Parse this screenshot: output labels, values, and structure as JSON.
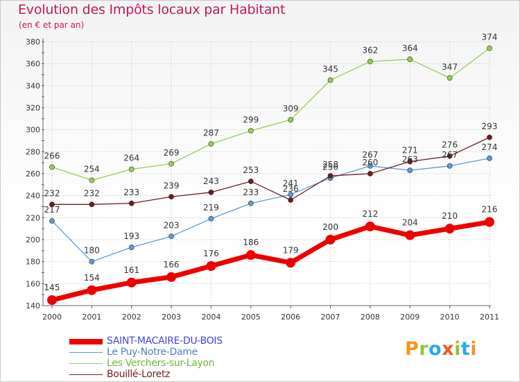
{
  "header": {
    "title": "Evolution des Impôts locaux par Habitant",
    "subtitle": "(en € et par an)"
  },
  "logo": {
    "text": "Proxiti",
    "letters": [
      {
        "ch": "P",
        "color": "#f7941d"
      },
      {
        "ch": "r",
        "color": "#8dc63f"
      },
      {
        "ch": "o",
        "color": "#29abe2"
      },
      {
        "ch": "x",
        "color": "#f15a24"
      },
      {
        "ch": "i",
        "color": "#8dc63f"
      },
      {
        "ch": "t",
        "color": "#29abe2"
      },
      {
        "ch": "i",
        "color": "#f7941d"
      }
    ]
  },
  "chart_data": {
    "type": "line",
    "title": "Evolution des Impôts locaux par Habitant",
    "subtitle": "(en € et par an)",
    "x": [
      "2000",
      "2001",
      "2002",
      "2003",
      "2004",
      "2005",
      "2006",
      "2007",
      "2008",
      "2009",
      "2010",
      "2011"
    ],
    "ylim": [
      140,
      380
    ],
    "yticks": [
      140,
      160,
      180,
      200,
      220,
      240,
      260,
      280,
      300,
      320,
      340,
      360,
      380
    ],
    "grid": true,
    "legend_position": "bottom-left",
    "series": [
      {
        "name": "SAINT-MACAIRE-DU-BOIS",
        "color": "#ee0000",
        "label_color": "#4444dd",
        "highlight": true,
        "values": [
          145,
          154,
          161,
          166,
          176,
          186,
          179,
          200,
          212,
          204,
          210,
          216
        ]
      },
      {
        "name": "Le Puy-Notre-Dame",
        "color": "#5b9bd5",
        "label_color": "#4a7fc1",
        "highlight": false,
        "values": [
          217,
          180,
          193,
          203,
          219,
          233,
          241,
          256,
          267,
          263,
          267,
          274
        ]
      },
      {
        "name": "Les Verchers-sur-Layon",
        "color": "#92d050",
        "label_color": "#6fb536",
        "highlight": false,
        "values": [
          266,
          254,
          264,
          269,
          287,
          299,
          309,
          345,
          362,
          364,
          347,
          374
        ]
      },
      {
        "name": "Bouillé-Loretz",
        "color": "#6b1f1f",
        "label_color": "#6b1f1f",
        "highlight": false,
        "values": [
          232,
          232,
          233,
          239,
          243,
          253,
          236,
          258,
          260,
          271,
          276,
          293
        ]
      }
    ],
    "point_labels": [
      [
        "145",
        "154",
        "161",
        "166",
        "176",
        "186",
        "179",
        "200",
        "212",
        "204",
        "210",
        "216"
      ],
      [
        "217",
        "180",
        "193",
        "203",
        "219",
        "233",
        "241",
        "256",
        "267",
        "263",
        "267",
        "274"
      ],
      [
        "266",
        "254",
        "264",
        "269",
        "287",
        "299",
        "309",
        "345",
        "362",
        "364",
        "347",
        "374"
      ],
      [
        "232",
        "232",
        "233",
        "239",
        "243",
        "253",
        "236",
        "258",
        "260",
        "271",
        "276",
        "293"
      ]
    ]
  }
}
